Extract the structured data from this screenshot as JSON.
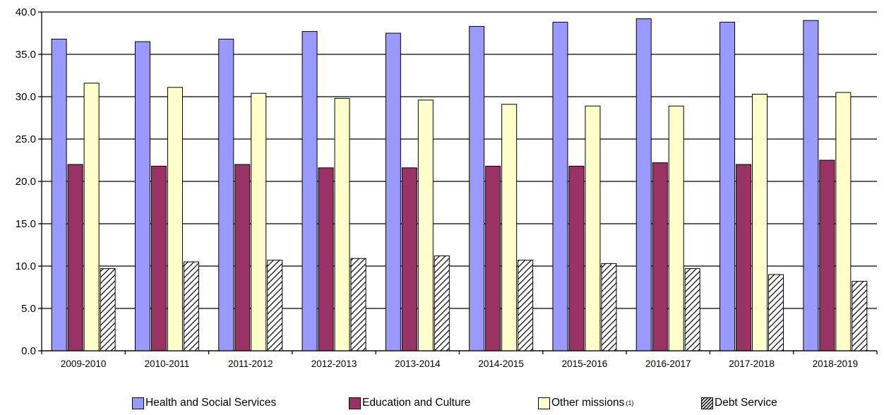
{
  "chart_data": {
    "type": "bar",
    "categories": [
      "2009-2010",
      "2010-2011",
      "2011-2012",
      "2012-2013",
      "2013-2014",
      "2014-2015",
      "2015-2016",
      "2016-2017",
      "2017-2018",
      "2018-2019"
    ],
    "series": [
      {
        "name": "Health and Social Services",
        "color": "#9999ff",
        "pattern": "solid",
        "values": [
          36.8,
          36.5,
          36.8,
          37.7,
          37.5,
          38.3,
          38.8,
          39.2,
          38.8,
          39.0
        ]
      },
      {
        "name": "Education and Culture",
        "color": "#993366",
        "pattern": "solid",
        "values": [
          22.0,
          21.8,
          22.0,
          21.6,
          21.6,
          21.8,
          21.8,
          22.2,
          22.0,
          22.5
        ]
      },
      {
        "name": "Other missions",
        "name_superscript": "(1)",
        "color": "#ffffcc",
        "pattern": "solid",
        "values": [
          31.6,
          31.1,
          30.4,
          29.8,
          29.6,
          29.1,
          28.9,
          28.9,
          30.3,
          30.5
        ]
      },
      {
        "name": "Debt Service",
        "color": "#ffffff",
        "pattern": "diagonal-hatch",
        "values": [
          9.7,
          10.5,
          10.7,
          10.9,
          11.2,
          10.7,
          10.3,
          9.7,
          9.0,
          8.2
        ]
      }
    ],
    "y_ticks": [
      "0.0",
      "5.0",
      "10.0",
      "15.0",
      "20.0",
      "25.0",
      "30.0",
      "35.0",
      "40.0"
    ],
    "ylim": [
      0,
      40
    ],
    "title": "",
    "xlabel": "",
    "ylabel": "",
    "grid": true,
    "legend_position": "bottom"
  }
}
